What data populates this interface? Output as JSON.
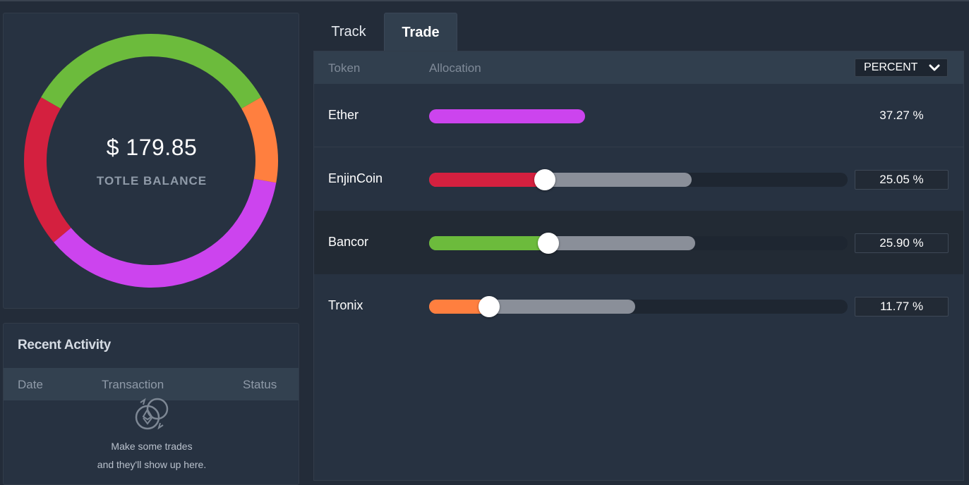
{
  "balance": {
    "amount": "$ 179.85",
    "label": "TOTLE BALANCE"
  },
  "activity": {
    "title": "Recent Activity",
    "columns": [
      "Date",
      "Transaction",
      "Status"
    ],
    "empty_line1": "Make some trades",
    "empty_line2": "and they'll show up here.",
    "empty_icon": "swap-ether-icon"
  },
  "tabs": [
    {
      "label": "Track",
      "active": false
    },
    {
      "label": "Trade",
      "active": true
    }
  ],
  "trade": {
    "col_token": "Token",
    "col_allocation": "Allocation",
    "unit_select": "PERCENT",
    "rows": [
      {
        "name": "Ether",
        "percent": "37.27 %",
        "value": 37.27,
        "color": "#cc44ee",
        "fill": 0.3727,
        "range": null
      },
      {
        "name": "EnjinCoin",
        "percent": "25.05 %",
        "value": 25.05,
        "color": "#d4203f",
        "fill": 0.2505,
        "range": 0.627
      },
      {
        "name": "Bancor",
        "percent": "25.90 %",
        "value": 25.9,
        "color": "#6cbb3c",
        "fill": 0.259,
        "range": 0.6359
      },
      {
        "name": "Tronix",
        "percent": "11.77 %",
        "value": 11.77,
        "color": "#ff7f3f",
        "fill": 0.1177,
        "range": 0.4923
      }
    ]
  },
  "colors": {
    "ether": "#cc44ee",
    "enjincoin": "#d4203f",
    "bancor": "#6cbb3c",
    "tronix": "#ff7f3f"
  }
}
